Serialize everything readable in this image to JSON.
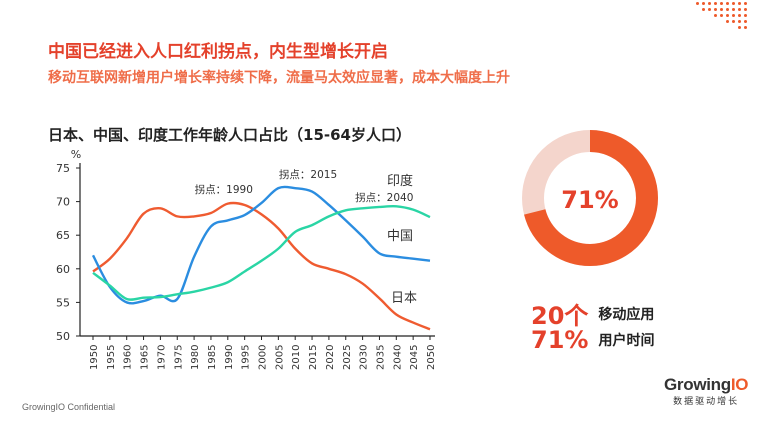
{
  "slide": {
    "title": "中国已经进入人口红利拐点，内生型增长开启",
    "subtitle": "移动互联网新增用户增长率持续下降，流量马太效应显著，成本大幅度上升",
    "footer": "GrowingIO Confidential",
    "logo_name_prefix": "Growing",
    "logo_name_suffix": "IO",
    "logo_tagline": "数据驱动增长",
    "accent_color": "#e4412b"
  },
  "side_panel": {
    "donut_value": 71,
    "donut_label": "71%",
    "stats": [
      {
        "number": "20个",
        "label": "移动应用"
      },
      {
        "number": "71%",
        "label": "用户时间"
      }
    ]
  },
  "chart_data": {
    "type": "line",
    "title": "日本、中国、印度工作年龄人口占比（15-64岁人口）",
    "ylabel": "%",
    "xlabel": "",
    "ylim": [
      50,
      75
    ],
    "yticks": [
      50,
      55,
      60,
      65,
      70,
      75
    ],
    "x": [
      1950,
      1955,
      1960,
      1965,
      1970,
      1975,
      1980,
      1985,
      1990,
      1995,
      2000,
      2005,
      2010,
      2015,
      2020,
      2025,
      2030,
      2035,
      2040,
      2045,
      2050
    ],
    "grid": false,
    "series": [
      {
        "name": "日本",
        "color": "#ef5b30",
        "values": [
          59.6,
          61.5,
          64.5,
          68.2,
          69.0,
          67.8,
          67.8,
          68.3,
          69.7,
          69.5,
          68.1,
          66.0,
          63.0,
          60.8,
          60.0,
          59.2,
          57.8,
          55.6,
          53.2,
          52.0,
          51.0
        ]
      },
      {
        "name": "中国",
        "color": "#2b8de0",
        "values": [
          62.0,
          57.3,
          55.0,
          55.2,
          56.0,
          55.5,
          61.8,
          66.3,
          67.2,
          68.0,
          69.8,
          72.0,
          72.0,
          71.5,
          69.5,
          67.2,
          64.8,
          62.3,
          61.8,
          61.5,
          61.2
        ]
      },
      {
        "name": "印度",
        "color": "#2ad5a5",
        "values": [
          59.4,
          57.5,
          55.5,
          55.7,
          55.8,
          56.2,
          56.6,
          57.2,
          58.0,
          59.6,
          61.2,
          63.0,
          65.5,
          66.5,
          67.8,
          68.7,
          69.0,
          69.2,
          69.3,
          68.8,
          67.7
        ]
      }
    ],
    "annotations": [
      {
        "text": "拐点：1990",
        "x": 1990
      },
      {
        "text": "拐点：2015",
        "x": 2015
      },
      {
        "text": "拐点：2040",
        "x": 2040
      }
    ]
  }
}
